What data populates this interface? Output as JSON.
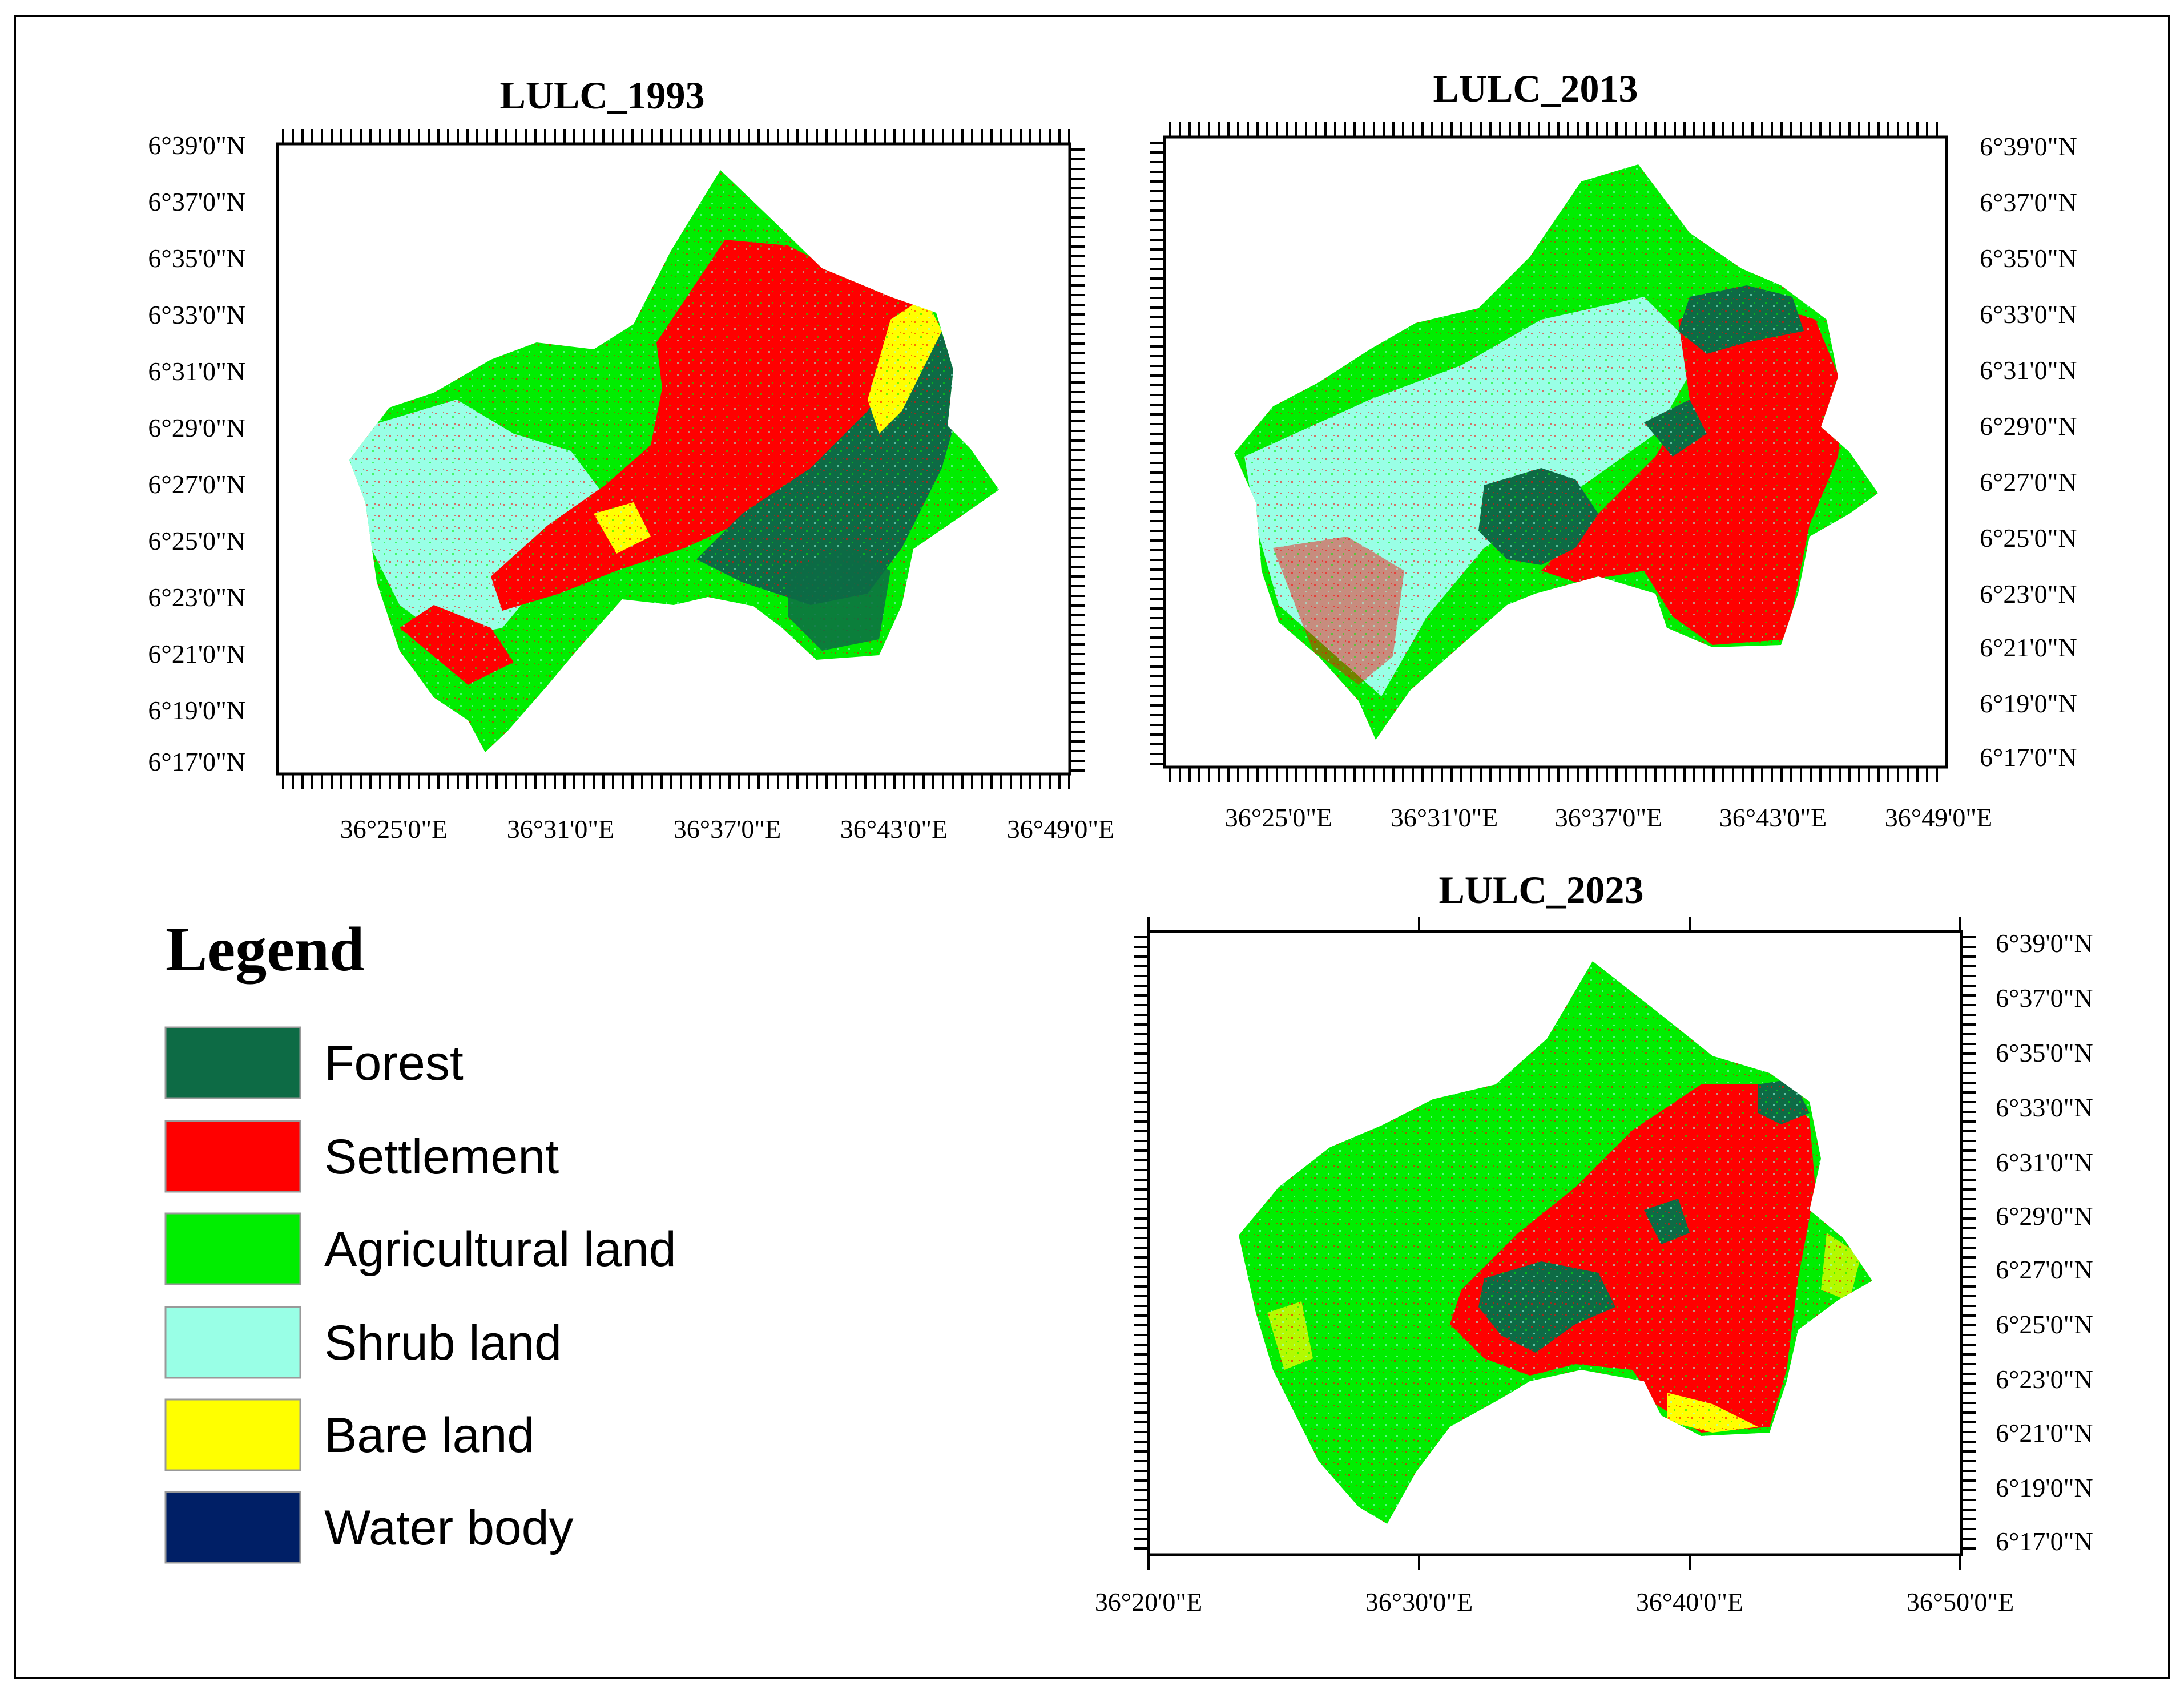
{
  "maps": {
    "m1993": {
      "title": "LULC_1993",
      "lat_labels": [
        "6°39'0\"N",
        "6°37'0\"N",
        "6°35'0\"N",
        "6°33'0\"N",
        "6°31'0\"N",
        "6°29'0\"N",
        "6°27'0\"N",
        "6°25'0\"N",
        "6°23'0\"N",
        "6°21'0\"N",
        "6°19'0\"N",
        "6°17'0\"N"
      ],
      "lon_labels": [
        "36°25'0\"E",
        "36°31'0\"E",
        "36°37'0\"E",
        "36°43'0\"E",
        "36°49'0\"E"
      ]
    },
    "m2013": {
      "title": "LULC_2013",
      "lat_labels": [
        "6°39'0\"N",
        "6°37'0\"N",
        "6°35'0\"N",
        "6°33'0\"N",
        "6°31'0\"N",
        "6°29'0\"N",
        "6°27'0\"N",
        "6°25'0\"N",
        "6°23'0\"N",
        "6°21'0\"N",
        "6°19'0\"N",
        "6°17'0\"N"
      ],
      "lon_labels": [
        "36°25'0\"E",
        "36°31'0\"E",
        "36°37'0\"E",
        "36°43'0\"E",
        "36°49'0\"E"
      ]
    },
    "m2023": {
      "title": "LULC_2023",
      "lat_labels": [
        "6°39'0\"N",
        "6°37'0\"N",
        "6°35'0\"N",
        "6°33'0\"N",
        "6°31'0\"N",
        "6°29'0\"N",
        "6°27'0\"N",
        "6°25'0\"N",
        "6°23'0\"N",
        "6°21'0\"N",
        "6°19'0\"N",
        "6°17'0\"N"
      ],
      "lon_labels": [
        "36°20'0\"E",
        "36°30'0\"E",
        "36°40'0\"E",
        "36°50'0\"E"
      ]
    }
  },
  "legend": {
    "title": "Legend",
    "items": [
      {
        "label": "Forest",
        "color": "#0d6b45"
      },
      {
        "label": "Settlement",
        "color": "#ff0000"
      },
      {
        "label": "Agricultural land",
        "color": "#00ee00"
      },
      {
        "label": "Shrub land",
        "color": "#99ffe6"
      },
      {
        "label": "Bare land",
        "color": "#ffff00"
      },
      {
        "label": "Water body",
        "color": "#001f66"
      }
    ]
  }
}
